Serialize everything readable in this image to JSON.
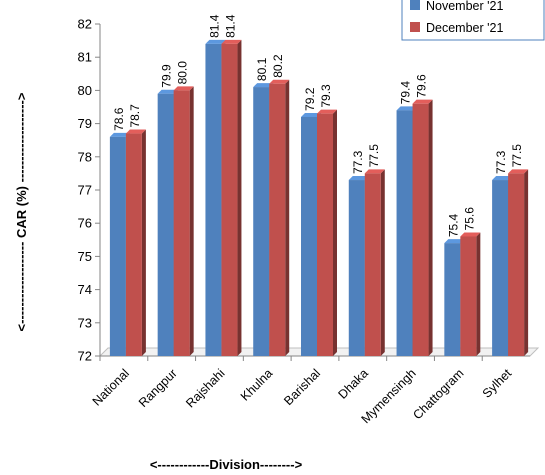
{
  "chart_data": {
    "type": "bar",
    "categories": [
      "National",
      "Rangpur",
      "Rajshahi",
      "Khulna",
      "Barishal",
      "Dhaka",
      "Mymensingh",
      "Chattogram",
      "Sylhet"
    ],
    "series": [
      {
        "name": "November '21",
        "values": [
          78.6,
          79.9,
          81.4,
          80.1,
          79.2,
          77.3,
          79.4,
          75.4,
          77.3
        ],
        "labels": [
          "78.6",
          "79.9",
          "81.4",
          "80.1",
          "79.2",
          "77.3",
          "79.4",
          "75.4",
          "77.3"
        ],
        "color": "#4F81BD"
      },
      {
        "name": "December '21",
        "values": [
          78.7,
          80.0,
          81.4,
          80.2,
          79.3,
          77.5,
          79.6,
          75.6,
          77.5
        ],
        "labels": [
          "78.7",
          "80.0",
          "81.4",
          "80.2",
          "79.3",
          "77.5",
          "79.6",
          "75.6",
          "77.5"
        ],
        "color": "#C0504D"
      }
    ],
    "ylim": [
      72,
      82
    ],
    "yticks": [
      72,
      73,
      74,
      75,
      76,
      77,
      78,
      79,
      80,
      81,
      82
    ],
    "ylabel": "<------------------- CAR (%) ------------------->",
    "xlabel": "<------------Division-------->",
    "legend_position": "top-right",
    "grid": false
  }
}
